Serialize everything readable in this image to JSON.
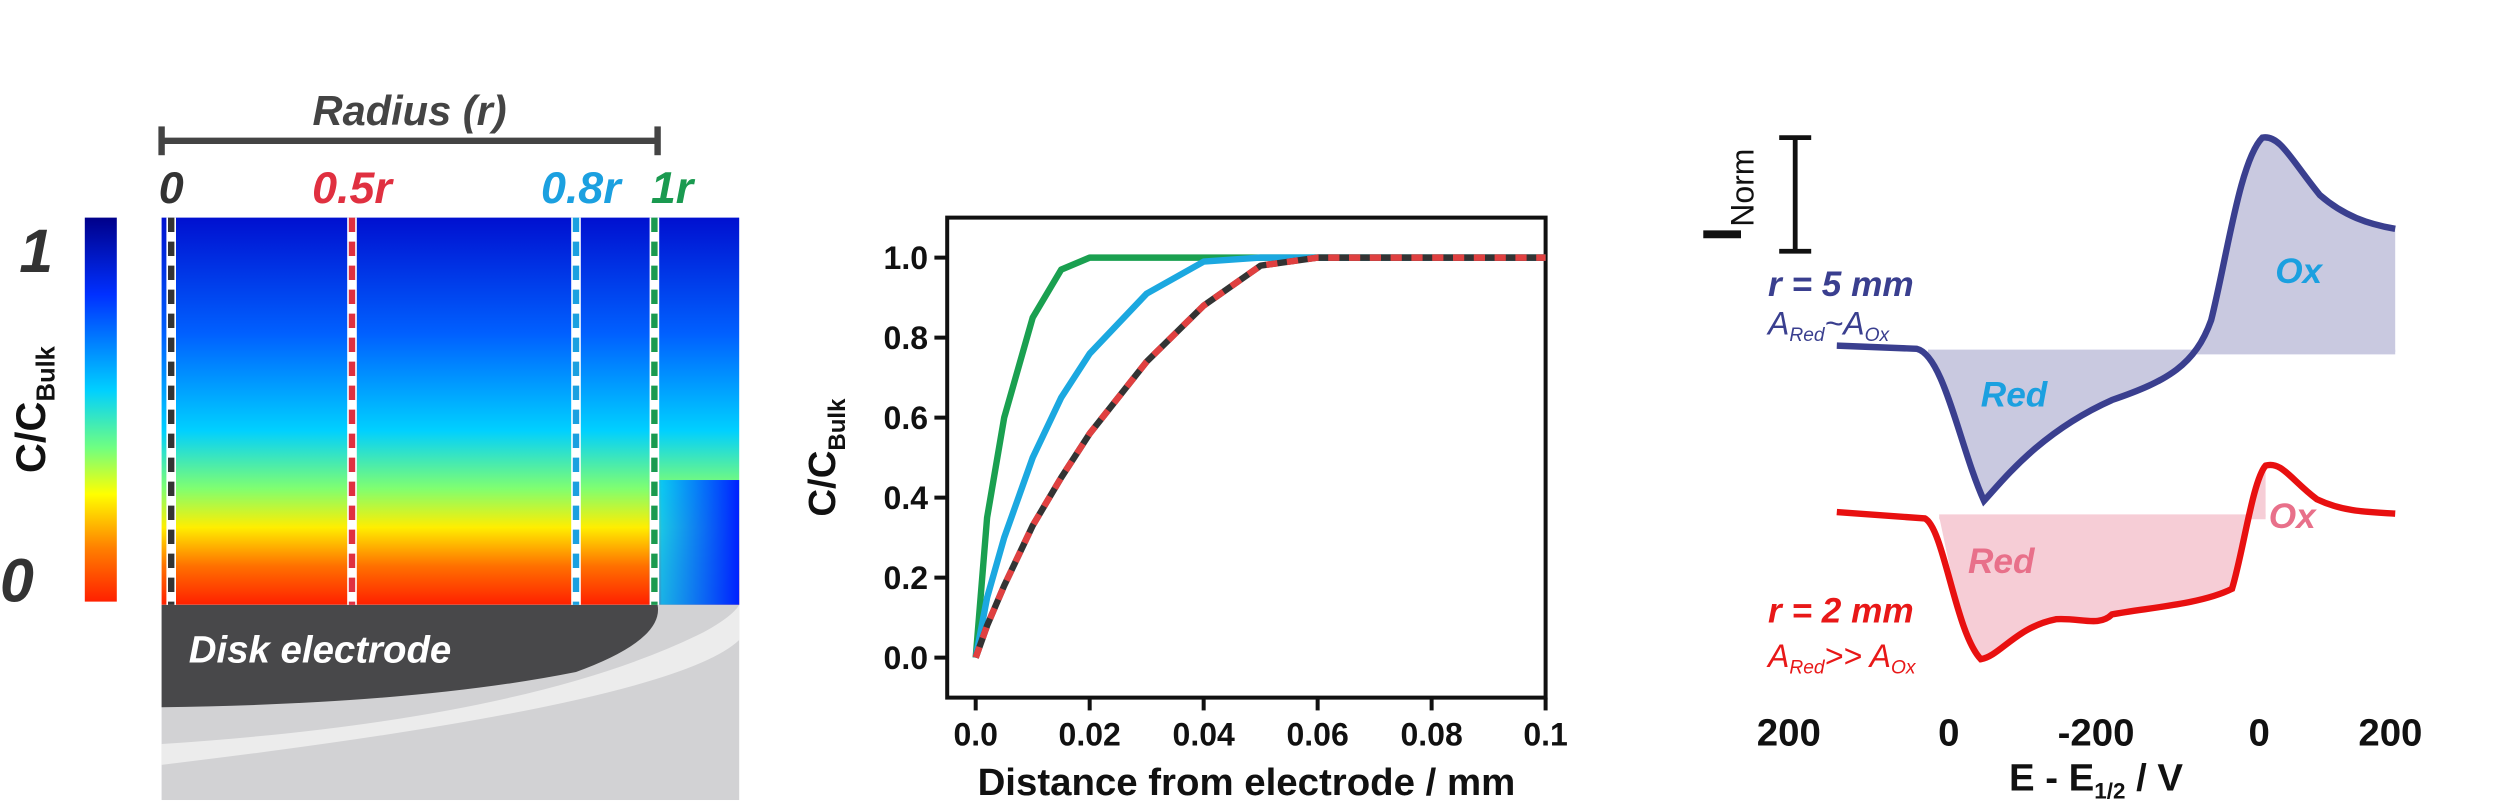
{
  "diagram": {
    "radius_label": "Radius (r)",
    "markers": [
      "0",
      "0.5r",
      "0.8r",
      "1r"
    ],
    "colorbar_max": "1",
    "colorbar_min": "0",
    "colorbar_title": [
      "C/C",
      "Bulk"
    ],
    "electrode_label": "Disk electrode"
  },
  "chart_data": [
    {
      "type": "line",
      "xlabel": "Distance from electrode / mm",
      "ylabel": [
        "C/C",
        "Bulk"
      ],
      "x": [
        0,
        0.002,
        0.005,
        0.01,
        0.015,
        0.02,
        0.03,
        0.04,
        0.05,
        0.06,
        0.08,
        0.1
      ],
      "series": [
        {
          "color": "#1aa050",
          "values": [
            0,
            0.35,
            0.6,
            0.85,
            0.97,
            1,
            1,
            1,
            1,
            1,
            1,
            1
          ]
        },
        {
          "color": "#1ba8e0",
          "values": [
            0,
            0.15,
            0.3,
            0.5,
            0.65,
            0.76,
            0.91,
            0.99,
            1,
            1,
            1,
            1
          ]
        },
        {
          "color": "#333333",
          "values": [
            0,
            0.08,
            0.18,
            0.33,
            0.45,
            0.56,
            0.74,
            0.88,
            0.98,
            1,
            1,
            1
          ]
        },
        {
          "color": "#e04040",
          "dashed": true,
          "values": [
            0,
            0.08,
            0.18,
            0.33,
            0.45,
            0.56,
            0.74,
            0.88,
            0.98,
            1,
            1,
            1
          ]
        }
      ],
      "xlim": [
        -0.005,
        0.1
      ],
      "ylim": [
        -0.1,
        1.1
      ],
      "xticks": [
        {
          "value": 0,
          "label": "0.0"
        },
        0.02,
        0.04,
        0.06,
        0.08,
        0.1
      ],
      "yticks": [
        {
          "value": 0,
          "label": "0.0"
        },
        0.2,
        0.4,
        0.6,
        0.8,
        {
          "value": 1,
          "label": "1.0"
        }
      ]
    },
    {
      "type": "cv",
      "ylabel": [
        "I",
        "Norm"
      ],
      "xtick_labels": [
        "200",
        "0",
        "-200",
        "0",
        "200"
      ],
      "xlabel": [
        "E - E",
        "1/2",
        " / V"
      ],
      "top": {
        "label": "r = 5 mm",
        "area": [
          "A",
          "Red",
          "~A",
          "Ox"
        ],
        "ox": "Ox",
        "red": "Red"
      },
      "bottom": {
        "label": "r = 2 mm",
        "area": [
          "A",
          "Red",
          ">> A",
          "Ox"
        ],
        "ox": "Ox",
        "red": "Red"
      }
    }
  ]
}
